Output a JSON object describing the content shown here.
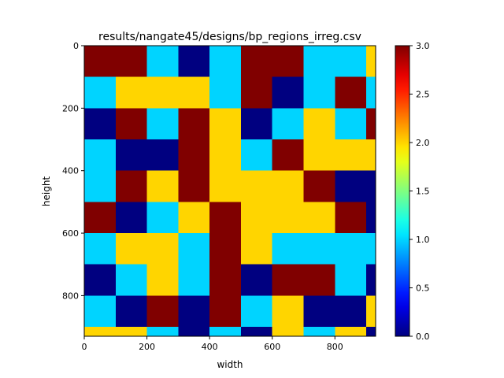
{
  "chart_data": {
    "type": "heatmap",
    "title": "results/nangate45/designs/bp_regions_irreg.csv",
    "xlabel": "width",
    "ylabel": "height",
    "colormap": "jet",
    "xlim": [
      0,
      930
    ],
    "ylim": [
      930,
      0
    ],
    "x_ticks": [
      0,
      200,
      400,
      600,
      800
    ],
    "y_ticks": [
      0,
      200,
      400,
      600,
      800
    ],
    "cell_size": 100,
    "colorbar": {
      "min": 0.0,
      "max": 3.0,
      "ticks": [
        "0.0",
        "0.5",
        "1.0",
        "1.5",
        "2.0",
        "2.5",
        "3.0"
      ]
    },
    "grid": [
      [
        3,
        3,
        1,
        0,
        1,
        3,
        3,
        1,
        1,
        2
      ],
      [
        1,
        2,
        2,
        2,
        1,
        3,
        0,
        1,
        3,
        1
      ],
      [
        0,
        3,
        1,
        3,
        2,
        0,
        1,
        2,
        1,
        3
      ],
      [
        1,
        0,
        0,
        3,
        2,
        1,
        3,
        2,
        2,
        2
      ],
      [
        1,
        3,
        2,
        3,
        2,
        2,
        2,
        3,
        0,
        0
      ],
      [
        3,
        0,
        1,
        2,
        3,
        2,
        2,
        2,
        3,
        0
      ],
      [
        1,
        2,
        2,
        1,
        3,
        2,
        1,
        1,
        1,
        1
      ],
      [
        0,
        1,
        2,
        1,
        3,
        0,
        3,
        3,
        1,
        0
      ],
      [
        1,
        0,
        3,
        0,
        3,
        1,
        2,
        0,
        0,
        2
      ],
      [
        2,
        2,
        1,
        0,
        1,
        0,
        2,
        1,
        2,
        0
      ]
    ]
  }
}
